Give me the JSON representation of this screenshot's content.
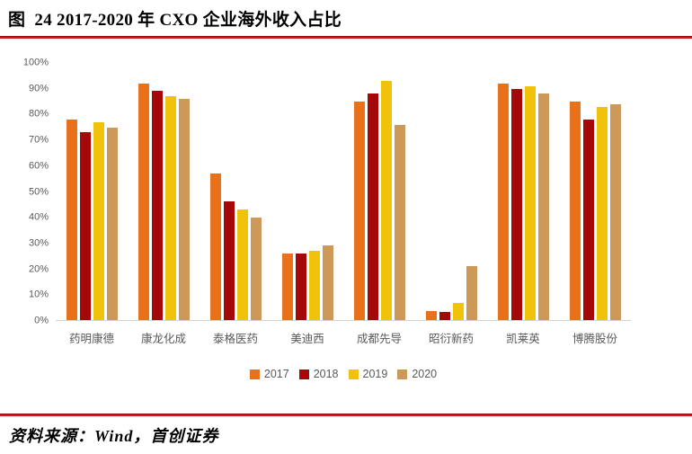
{
  "figure": {
    "title": "图  24 2017-2020 年 CXO 企业海外收入占比",
    "source": "资料来源：Wind，首创证券",
    "accent_rule_color": "#d41717"
  },
  "chart_data": {
    "type": "bar",
    "title": "2017-2020 年 CXO 企业海外收入占比",
    "categories": [
      "药明康德",
      "康龙化成",
      "泰格医药",
      "美迪西",
      "成都先导",
      "昭衍新药",
      "凯莱英",
      "博腾股份"
    ],
    "series": [
      {
        "name": "2017",
        "color": "#E8711C",
        "values": [
          78,
          92,
          57,
          26,
          85,
          3.5,
          92,
          85
        ]
      },
      {
        "name": "2018",
        "color": "#A50808",
        "values": [
          73,
          89,
          46,
          26,
          88,
          3,
          90,
          78
        ]
      },
      {
        "name": "2019",
        "color": "#F0C30A",
        "values": [
          77,
          87,
          43,
          27,
          93,
          6.5,
          91,
          83
        ]
      },
      {
        "name": "2020",
        "color": "#CC9958",
        "values": [
          75,
          86,
          40,
          29,
          76,
          21,
          88,
          84
        ]
      }
    ],
    "xlabel": "",
    "ylabel": "",
    "ylim": [
      0,
      100
    ],
    "ytick_step": 10,
    "ytick_suffix": "%",
    "grid": false,
    "legend_position": "bottom",
    "axis_text_color": "#595959"
  }
}
